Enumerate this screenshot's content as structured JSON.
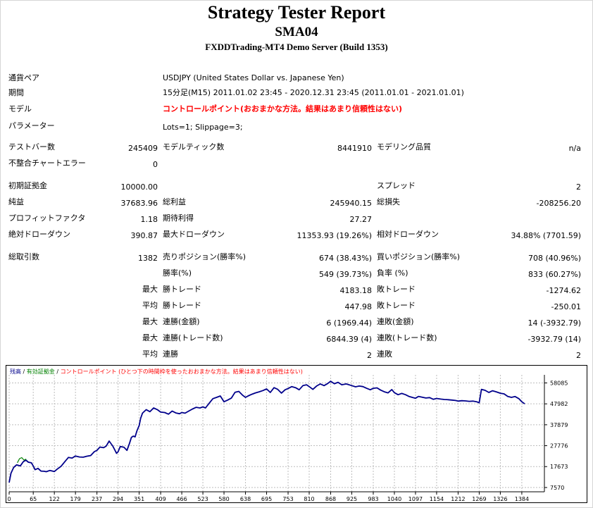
{
  "header": {
    "title": "Strategy Tester Report",
    "expert": "SMA04",
    "server": "FXDDTrading-MT4 Demo Server (Build 1353)"
  },
  "info": {
    "symbol_label": "通貨ペア",
    "symbol_value": "USDJPY (United States Dollar vs. Japanese Yen)",
    "period_label": "期間",
    "period_value": "15分足(M15) 2011.01.02 23:45 - 2020.12.31 23:45 (2011.01.01 - 2021.01.01)",
    "model_label": "モデル",
    "model_value": "コントロールポイント(おおまかな方法。結果はあまり信頼性はない)",
    "params_label": "パラメーター",
    "params_value": "Lots=1; Slippage=3;"
  },
  "stats": {
    "bars_label": "テストバー数",
    "bars_value": "245409",
    "ticks_label": "モデルティック数",
    "ticks_value": "8441910",
    "quality_label": "モデリング品質",
    "quality_value": "n/a",
    "mismatch_label": "不整合チャートエラー",
    "mismatch_value": "0",
    "deposit_label": "初期証拠金",
    "deposit_value": "10000.00",
    "spread_label": "スプレッド",
    "spread_value": "2",
    "net_label": "純益",
    "net_value": "37683.96",
    "gross_profit_label": "総利益",
    "gross_profit_value": "245940.15",
    "gross_loss_label": "総損失",
    "gross_loss_value": "-208256.20",
    "pf_label": "プロフィットファクタ",
    "pf_value": "1.18",
    "expected_label": "期待利得",
    "expected_value": "27.27",
    "abs_dd_label": "絶対ドローダウン",
    "abs_dd_value": "390.87",
    "max_dd_label": "最大ドローダウン",
    "max_dd_value": "11353.93 (19.26%)",
    "rel_dd_label": "相対ドローダウン",
    "rel_dd_value": "34.88% (7701.59)"
  },
  "trades": {
    "total_label": "総取引数",
    "total_value": "1382",
    "short_label": "売りポジション(勝率%)",
    "short_value": "674 (38.43%)",
    "long_label": "買いポジション(勝率%)",
    "long_value": "708 (40.96%)",
    "win_label": "勝率(%)",
    "win_value": "549 (39.73%)",
    "loss_label": "負率 (%)",
    "loss_value": "833 (60.27%)",
    "max_word": "最大",
    "avg_word": "平均",
    "win_trade_label": "勝トレード",
    "lose_trade_label": "敗トレード",
    "max_win_value": "4183.18",
    "max_loss_value": "-1274.62",
    "avg_win_value": "447.98",
    "avg_loss_value": "-250.01",
    "cons_win_money_label": "連勝(金額)",
    "cons_win_money_value": "6 (1969.44)",
    "cons_loss_money_label": "連敗(金額)",
    "cons_loss_money_value": "14 (-3932.79)",
    "cons_win_trades_label": "連勝(トレード数)",
    "cons_win_trades_value": "6844.39 (4)",
    "cons_loss_trades_label": "連敗(トレード数)",
    "cons_loss_trades_value": "-3932.79 (14)",
    "avg_cons_win_label": "連勝",
    "avg_cons_win_value": "2",
    "avg_cons_loss_label": "連敗",
    "avg_cons_loss_value": "2"
  },
  "chart_data": {
    "type": "line",
    "legend": {
      "balance": "残高",
      "sep1": " / ",
      "equity": "有効証拠金",
      "sep2": " / ",
      "model": "コントロールポイント (ひとつ下の時間枠を使ったおおまかな方法。結果はあまり信頼性はない)"
    },
    "x_ticks": [
      0,
      65,
      122,
      179,
      237,
      294,
      351,
      409,
      466,
      523,
      580,
      638,
      695,
      753,
      810,
      868,
      925,
      983,
      1040,
      1097,
      1154,
      1212,
      1269,
      1326,
      1384
    ],
    "y_ticks": [
      7570,
      17673,
      27776,
      37879,
      47982,
      58085
    ],
    "xlim": [
      0,
      1445
    ],
    "ylim": [
      5500,
      62000
    ],
    "series": [
      {
        "name": "残高",
        "color": "#00008b",
        "x": [
          0,
          5,
          12,
          20,
          30,
          38,
          45,
          52,
          60,
          65,
          70,
          78,
          86,
          95,
          100,
          110,
          122,
          130,
          140,
          150,
          160,
          170,
          179,
          190,
          200,
          210,
          220,
          230,
          237,
          245,
          255,
          262,
          270,
          280,
          290,
          294,
          300,
          310,
          318,
          325,
          330,
          335,
          340,
          345,
          351,
          355,
          360,
          370,
          380,
          390,
          400,
          409,
          420,
          430,
          440,
          450,
          460,
          466,
          475,
          485,
          495,
          505,
          515,
          523,
          530,
          540,
          550,
          560,
          570,
          580,
          590,
          600,
          610,
          620,
          630,
          638,
          645,
          655,
          665,
          675,
          685,
          695,
          705,
          715,
          725,
          735,
          745,
          753,
          763,
          773,
          783,
          793,
          803,
          810,
          820,
          830,
          840,
          850,
          860,
          868,
          878,
          888,
          898,
          910,
          925,
          935,
          945,
          955,
          965,
          975,
          983,
          993,
          1003,
          1013,
          1023,
          1033,
          1040,
          1050,
          1060,
          1070,
          1080,
          1090,
          1097,
          1105,
          1115,
          1125,
          1135,
          1145,
          1154,
          1165,
          1175,
          1185,
          1195,
          1205,
          1212,
          1222,
          1232,
          1242,
          1252,
          1262,
          1269,
          1275,
          1285,
          1295,
          1305,
          1315,
          1326,
          1336,
          1346,
          1356,
          1366,
          1376,
          1384,
          1392
        ],
        "y": [
          10000,
          14500,
          17200,
          18500,
          18000,
          20000,
          20800,
          19800,
          19500,
          18000,
          16200,
          16800,
          15500,
          15400,
          15200,
          15800,
          15300,
          16500,
          17800,
          20000,
          22100,
          21800,
          22800,
          22300,
          22200,
          22700,
          23000,
          24900,
          25500,
          27100,
          26800,
          27600,
          30000,
          27500,
          24100,
          24800,
          27400,
          27000,
          25500,
          28900,
          31800,
          32400,
          32000,
          35000,
          37500,
          41000,
          43500,
          45200,
          44200,
          46000,
          45200,
          44000,
          43800,
          43000,
          44500,
          43600,
          43200,
          43800,
          43500,
          44500,
          45500,
          46300,
          46000,
          46500,
          46000,
          48300,
          50500,
          51100,
          51800,
          49000,
          49800,
          50800,
          53600,
          54000,
          52200,
          51100,
          51800,
          52600,
          53300,
          53800,
          54400,
          55200,
          53500,
          55800,
          55000,
          53200,
          54800,
          55400,
          56300,
          55800,
          54800,
          56800,
          57200,
          56300,
          55000,
          56600,
          57600,
          56800,
          57800,
          58900,
          57700,
          58400,
          57200,
          57600,
          56800,
          56200,
          56600,
          56300,
          55500,
          54800,
          55500,
          55700,
          54600,
          53800,
          53300,
          54900,
          53400,
          52400,
          53000,
          52400,
          51500,
          51000,
          50700,
          51600,
          51200,
          50800,
          51000,
          50200,
          50600,
          50300,
          50100,
          50000,
          49800,
          49600,
          49300,
          49500,
          49400,
          49200,
          49300,
          49000,
          48500,
          55000,
          54500,
          53500,
          54300,
          53800,
          53100,
          52800,
          51600,
          51100,
          51500,
          50500,
          49000,
          47982
        ]
      },
      {
        "name": "有効証拠金",
        "color": "#008000",
        "x": [
          22,
          28,
          34,
          40,
          46
        ],
        "y": [
          19500,
          21500,
          22000,
          20800,
          21300
        ]
      }
    ]
  }
}
